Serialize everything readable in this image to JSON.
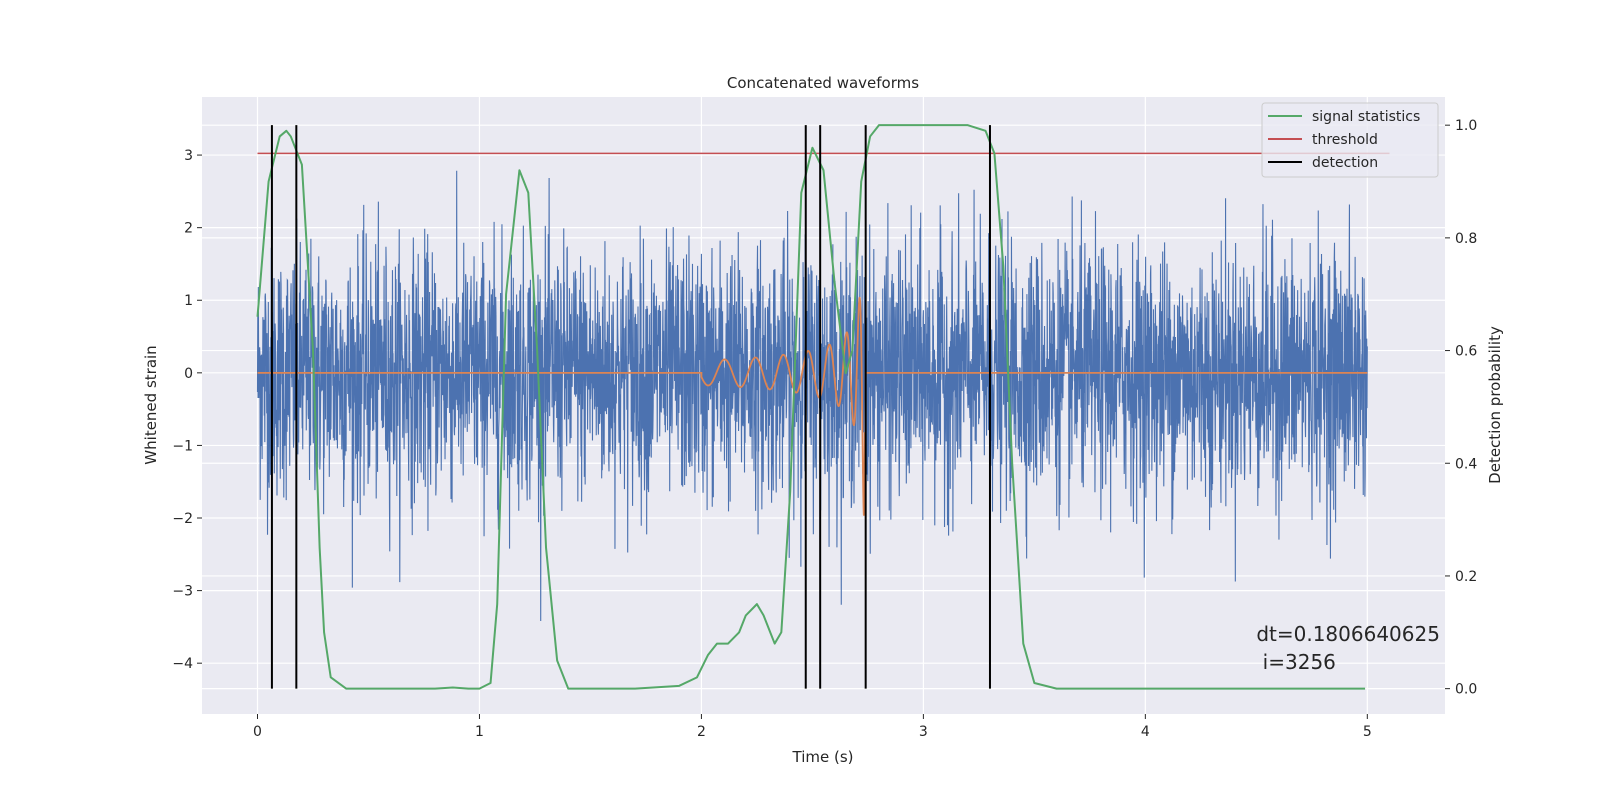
{
  "chart_data": {
    "type": "line",
    "title": "Concatenated waveforms",
    "xlabel": "Time (s)",
    "ylabel": "Whitened strain",
    "y2label": "Detection probability",
    "xlim": [
      -0.25,
      5.35
    ],
    "ylim": [
      -4.7,
      3.8
    ],
    "y2lim": [
      -0.045,
      1.05
    ],
    "grid": true,
    "legend_position": "top-right",
    "x_ticks": [
      0,
      1,
      2,
      3,
      4,
      5
    ],
    "x_tick_labels": [
      "0",
      "1",
      "2",
      "3",
      "4",
      "5"
    ],
    "y_ticks": [
      3,
      2,
      1,
      0,
      -1,
      -2,
      -3,
      -4
    ],
    "y_tick_labels": [
      "3",
      "2",
      "1",
      "0",
      "−1",
      "−2",
      "−3",
      "−4"
    ],
    "y2_ticks": [
      1.0,
      0.8,
      0.6,
      0.4,
      0.2,
      0.0
    ],
    "y2_tick_labels": [
      "1.0",
      "0.8",
      "0.6",
      "0.4",
      "0.2",
      "0.0"
    ],
    "noise_series": {
      "color": "#4c72b0",
      "x_range": [
        0,
        5
      ],
      "n_points": 4096,
      "typical_amplitude": 1.0,
      "max": 3.4,
      "min": -4.3
    },
    "signal_series": {
      "color": "#dd8452",
      "x_range": [
        0,
        5
      ],
      "chirp_start": 2.0,
      "chirp_end": 2.74,
      "peak_amplitude": 2.4,
      "baseline": 0
    },
    "series": [
      {
        "name": "signal statistics",
        "color": "#55a868",
        "axis": "right",
        "x": [
          0,
          0.05,
          0.1,
          0.13,
          0.15,
          0.2,
          0.25,
          0.28,
          0.3,
          0.33,
          0.4,
          0.6,
          0.8,
          0.88,
          0.95,
          1.0,
          1.05,
          1.08,
          1.12,
          1.18,
          1.22,
          1.26,
          1.3,
          1.35,
          1.4,
          1.5,
          1.7,
          1.9,
          1.98,
          2.03,
          2.07,
          2.12,
          2.17,
          2.2,
          2.25,
          2.28,
          2.33,
          2.36,
          2.4,
          2.45,
          2.5,
          2.55,
          2.6,
          2.65,
          2.68,
          2.72,
          2.76,
          2.8,
          2.9,
          3.0,
          3.1,
          3.2,
          3.28,
          3.32,
          3.36,
          3.4,
          3.45,
          3.5,
          3.6,
          4.0,
          4.5,
          4.99
        ],
        "y": [
          0.66,
          0.9,
          0.98,
          0.99,
          0.98,
          0.93,
          0.6,
          0.25,
          0.1,
          0.02,
          0.0,
          0.0,
          0.0,
          0.002,
          0.0,
          0.0,
          0.01,
          0.15,
          0.7,
          0.92,
          0.88,
          0.6,
          0.25,
          0.05,
          0.0,
          0.0,
          0.0,
          0.005,
          0.02,
          0.06,
          0.08,
          0.08,
          0.1,
          0.13,
          0.15,
          0.13,
          0.08,
          0.1,
          0.35,
          0.88,
          0.96,
          0.92,
          0.72,
          0.56,
          0.6,
          0.9,
          0.98,
          1.0,
          1.0,
          1.0,
          1.0,
          1.0,
          0.99,
          0.95,
          0.75,
          0.4,
          0.08,
          0.01,
          0.0,
          0.0,
          0.0,
          0.0
        ]
      },
      {
        "name": "threshold",
        "color": "#c44e52",
        "axis": "right",
        "x": [
          0,
          5.1
        ],
        "y": [
          0.95,
          0.95
        ]
      },
      {
        "name": "detection",
        "color": "#000000",
        "axis": "right",
        "vlines_x": [
          0.065,
          0.175,
          2.47,
          2.535,
          2.74,
          3.3
        ],
        "vline_y_range": [
          0.0,
          1.0
        ]
      }
    ],
    "annotation": {
      "line1": "dt=0.1806640625",
      "line2": " i=3256",
      "x": 4.5,
      "y": -3.6
    }
  }
}
